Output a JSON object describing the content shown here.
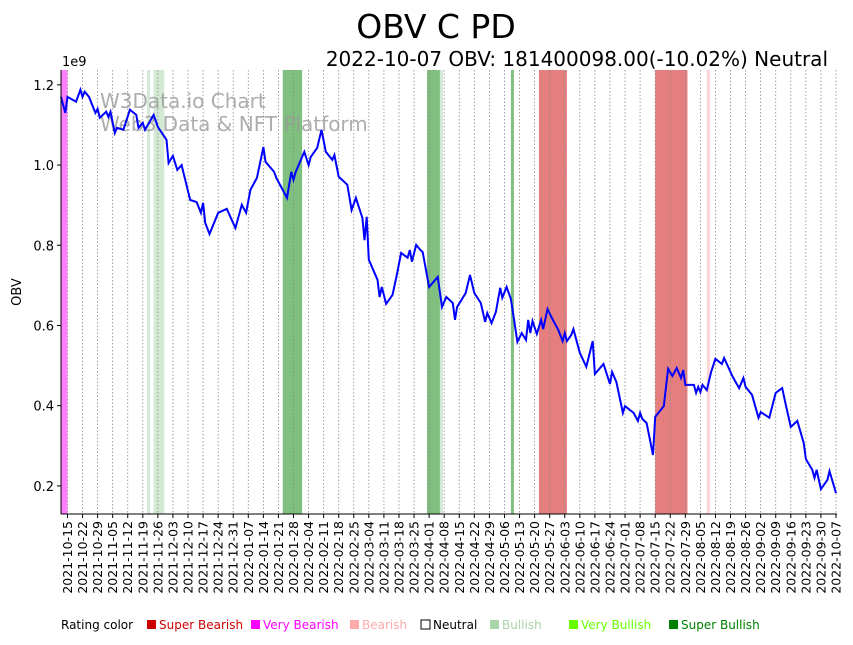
{
  "chart_data": {
    "type": "line",
    "title": "OBV C PD",
    "subtitle": "2022-10-07 OBV: 181400098.00(-10.02%) Neutral",
    "ylabel": "OBV",
    "y_scale_label": "1e9",
    "ylim": [
      0.13,
      1.237
    ],
    "yticks": [
      0.2,
      0.4,
      0.6,
      0.8,
      1.0,
      1.2
    ],
    "ytick_labels": [
      "0.2",
      "0.4",
      "0.6",
      "0.8",
      "1.0",
      "1.2"
    ],
    "x_unit": "days since 2021-10-15",
    "xlim": [
      -3,
      357
    ],
    "xtick_labels": [
      "2021-10-15",
      "2021-10-22",
      "2021-10-29",
      "2021-11-05",
      "2021-11-12",
      "2021-11-19",
      "2021-11-26",
      "2021-12-03",
      "2021-12-10",
      "2021-12-17",
      "2021-12-24",
      "2021-12-31",
      "2022-01-07",
      "2022-01-14",
      "2022-01-21",
      "2022-01-28",
      "2022-02-04",
      "2022-02-11",
      "2022-02-18",
      "2022-02-25",
      "2022-03-04",
      "2022-03-11",
      "2022-03-18",
      "2022-03-25",
      "2022-04-01",
      "2022-04-08",
      "2022-04-15",
      "2022-04-22",
      "2022-04-29",
      "2022-05-06",
      "2022-05-13",
      "2022-05-20",
      "2022-05-27",
      "2022-06-03",
      "2022-06-10",
      "2022-06-17",
      "2022-06-24",
      "2022-07-01",
      "2022-07-08",
      "2022-07-15",
      "2022-07-22",
      "2022-07-29",
      "2022-08-05",
      "2022-08-12",
      "2022-08-19",
      "2022-08-26",
      "2022-09-02",
      "2022-09-09",
      "2022-09-16",
      "2022-09-23",
      "2022-09-30",
      "2022-10-07"
    ],
    "grid": "vertical dotted",
    "series": [
      {
        "name": "OBV",
        "color": "#0000ff",
        "points": [
          [
            -3,
            1.17
          ],
          [
            -1,
            1.13
          ],
          [
            0,
            1.17
          ],
          [
            4,
            1.158
          ],
          [
            6,
            1.188
          ],
          [
            7,
            1.17
          ],
          [
            8,
            1.183
          ],
          [
            10,
            1.17
          ],
          [
            13,
            1.13
          ],
          [
            14,
            1.14
          ],
          [
            15,
            1.118
          ],
          [
            18,
            1.133
          ],
          [
            19,
            1.12
          ],
          [
            20,
            1.133
          ],
          [
            22,
            1.08
          ],
          [
            23,
            1.093
          ],
          [
            26,
            1.088
          ],
          [
            29,
            1.138
          ],
          [
            32,
            1.125
          ],
          [
            33,
            1.093
          ],
          [
            35,
            1.105
          ],
          [
            36,
            1.088
          ],
          [
            40,
            1.125
          ],
          [
            42,
            1.095
          ],
          [
            46,
            1.063
          ],
          [
            47,
            1.005
          ],
          [
            49,
            1.023
          ],
          [
            51,
            0.988
          ],
          [
            53,
            1.0
          ],
          [
            57,
            0.913
          ],
          [
            60,
            0.908
          ],
          [
            62,
            0.881
          ],
          [
            63,
            0.906
          ],
          [
            64,
            0.856
          ],
          [
            66,
            0.828
          ],
          [
            70,
            0.881
          ],
          [
            74,
            0.891
          ],
          [
            78,
            0.843
          ],
          [
            81,
            0.901
          ],
          [
            83,
            0.881
          ],
          [
            85,
            0.938
          ],
          [
            88,
            0.968
          ],
          [
            91,
            1.045
          ],
          [
            92,
            1.008
          ],
          [
            96,
            0.983
          ],
          [
            97,
            0.968
          ],
          [
            102,
            0.918
          ],
          [
            104,
            0.983
          ],
          [
            105,
            0.963
          ],
          [
            106,
            0.983
          ],
          [
            110,
            1.033
          ],
          [
            112,
            1.0
          ],
          [
            113,
            1.02
          ],
          [
            116,
            1.043
          ],
          [
            118,
            1.088
          ],
          [
            120,
            1.033
          ],
          [
            123,
            1.013
          ],
          [
            124,
            1.025
          ],
          [
            126,
            0.971
          ],
          [
            130,
            0.951
          ],
          [
            132,
            0.888
          ],
          [
            134,
            0.918
          ],
          [
            137,
            0.868
          ],
          [
            138,
            0.813
          ],
          [
            139,
            0.871
          ],
          [
            140,
            0.764
          ],
          [
            144,
            0.714
          ],
          [
            145,
            0.671
          ],
          [
            146,
            0.696
          ],
          [
            148,
            0.654
          ],
          [
            151,
            0.676
          ],
          [
            153,
            0.726
          ],
          [
            155,
            0.781
          ],
          [
            158,
            0.769
          ],
          [
            159,
            0.788
          ],
          [
            160,
            0.759
          ],
          [
            162,
            0.801
          ],
          [
            164,
            0.788
          ],
          [
            165,
            0.783
          ],
          [
            168,
            0.696
          ],
          [
            172,
            0.721
          ],
          [
            174,
            0.646
          ],
          [
            176,
            0.671
          ],
          [
            179,
            0.656
          ],
          [
            180,
            0.614
          ],
          [
            181,
            0.646
          ],
          [
            185,
            0.681
          ],
          [
            187,
            0.726
          ],
          [
            189,
            0.681
          ],
          [
            192,
            0.656
          ],
          [
            194,
            0.609
          ],
          [
            195,
            0.631
          ],
          [
            197,
            0.606
          ],
          [
            199,
            0.634
          ],
          [
            201,
            0.694
          ],
          [
            202,
            0.669
          ],
          [
            204,
            0.696
          ],
          [
            206,
            0.666
          ],
          [
            209,
            0.559
          ],
          [
            211,
            0.581
          ],
          [
            213,
            0.564
          ],
          [
            214,
            0.614
          ],
          [
            215,
            0.581
          ],
          [
            216,
            0.611
          ],
          [
            218,
            0.579
          ],
          [
            220,
            0.614
          ],
          [
            221,
            0.591
          ],
          [
            223,
            0.641
          ],
          [
            225,
            0.619
          ],
          [
            228,
            0.589
          ],
          [
            230,
            0.561
          ],
          [
            231,
            0.581
          ],
          [
            232,
            0.561
          ],
          [
            234,
            0.576
          ],
          [
            235,
            0.591
          ],
          [
            238,
            0.532
          ],
          [
            241,
            0.497
          ],
          [
            244,
            0.561
          ],
          [
            245,
            0.479
          ],
          [
            249,
            0.504
          ],
          [
            252,
            0.454
          ],
          [
            253,
            0.484
          ],
          [
            255,
            0.459
          ],
          [
            258,
            0.382
          ],
          [
            259,
            0.399
          ],
          [
            263,
            0.382
          ],
          [
            265,
            0.362
          ],
          [
            266,
            0.382
          ],
          [
            267,
            0.367
          ],
          [
            269,
            0.357
          ],
          [
            272,
            0.277
          ],
          [
            273,
            0.372
          ],
          [
            277,
            0.399
          ],
          [
            279,
            0.492
          ],
          [
            281,
            0.474
          ],
          [
            283,
            0.494
          ],
          [
            285,
            0.469
          ],
          [
            286,
            0.489
          ],
          [
            287,
            0.452
          ],
          [
            291,
            0.452
          ],
          [
            292,
            0.432
          ],
          [
            293,
            0.447
          ],
          [
            294,
            0.434
          ],
          [
            295,
            0.452
          ],
          [
            297,
            0.439
          ],
          [
            299,
            0.484
          ],
          [
            301,
            0.517
          ],
          [
            304,
            0.504
          ],
          [
            305,
            0.519
          ],
          [
            309,
            0.472
          ],
          [
            312,
            0.444
          ],
          [
            314,
            0.469
          ],
          [
            315,
            0.447
          ],
          [
            318,
            0.427
          ],
          [
            321,
            0.37
          ],
          [
            322,
            0.384
          ],
          [
            326,
            0.37
          ],
          [
            329,
            0.432
          ],
          [
            332,
            0.444
          ],
          [
            334,
            0.394
          ],
          [
            336,
            0.347
          ],
          [
            339,
            0.362
          ],
          [
            342,
            0.307
          ],
          [
            343,
            0.267
          ],
          [
            346,
            0.24
          ],
          [
            347,
            0.22
          ],
          [
            348,
            0.24
          ],
          [
            350,
            0.192
          ],
          [
            353,
            0.215
          ],
          [
            354,
            0.237
          ],
          [
            357,
            0.182
          ]
        ]
      }
    ],
    "rating_bands": [
      {
        "rating": "Very Bearish",
        "start": -3,
        "end": 0
      },
      {
        "rating": "Bullish",
        "start": 37,
        "end": 38
      },
      {
        "rating": "Bullish",
        "start": 40,
        "end": 45
      },
      {
        "rating": "Super Bullish",
        "start": 100,
        "end": 109
      },
      {
        "rating": "Super Bullish",
        "start": 167,
        "end": 173
      },
      {
        "rating": "Bullish",
        "start": 173,
        "end": 174
      },
      {
        "rating": "Super Bullish",
        "start": 206,
        "end": 207
      },
      {
        "rating": "Super Bearish",
        "start": 219,
        "end": 232
      },
      {
        "rating": "Super Bearish",
        "start": 273,
        "end": 288
      },
      {
        "rating": "Bearish",
        "start": 297,
        "end": 298
      }
    ],
    "legend": {
      "title": "Rating color",
      "placement": "bottom",
      "items": [
        {
          "label": "Super Bearish",
          "color": "#cc0000"
        },
        {
          "label": "Very Bearish",
          "color": "#ff00ff"
        },
        {
          "label": "Bearish",
          "color": "#ffaaaa"
        },
        {
          "label": "Neutral",
          "color": "#ffffff"
        },
        {
          "label": "Bullish",
          "color": "#aad4aa"
        },
        {
          "label": "Very Bullish",
          "color": "#66ff00"
        },
        {
          "label": "Super Bullish",
          "color": "#008000"
        }
      ]
    },
    "watermark": [
      "W3Data.io Chart",
      "Web3 Data & NFT Platform"
    ]
  }
}
